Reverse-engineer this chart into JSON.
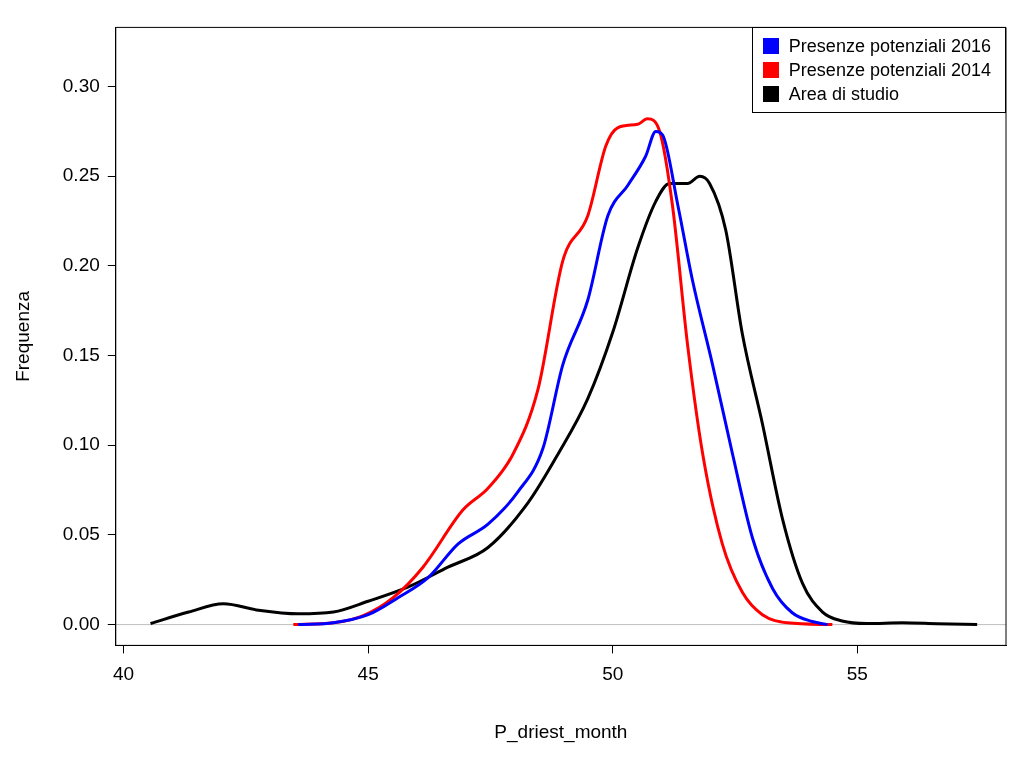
{
  "chart_data": {
    "type": "line",
    "xlabel": "P_driest_month",
    "ylabel": "Frequenza",
    "xlim": [
      39.84,
      58.04
    ],
    "ylim": [
      -0.0116,
      0.333
    ],
    "xticks": [
      40,
      45,
      50,
      55
    ],
    "yticks": [
      {
        "value": 0,
        "label": "0.00"
      },
      {
        "value": 0.05,
        "label": "0.05"
      },
      {
        "value": 0.1,
        "label": "0.10"
      },
      {
        "value": 0.15,
        "label": "0.15"
      },
      {
        "value": 0.2,
        "label": "0.20"
      },
      {
        "value": 0.25,
        "label": "0.25"
      },
      {
        "value": 0.3,
        "label": "0.30"
      }
    ],
    "grid": false,
    "legend": "top right",
    "marker": "none",
    "line_style": "solid",
    "ref_lines": [
      {
        "axis": "y",
        "value": 0,
        "color": "#bebebe"
      }
    ],
    "series": [
      {
        "name": "Presenze potenziali 2016",
        "color": "#0000ff",
        "x": [
          43.57,
          44.29,
          45.0,
          45.61,
          46.22,
          46.84,
          47.45,
          48.06,
          48.57,
          48.98,
          49.49,
          49.9,
          50.31,
          50.67,
          50.88,
          51.02,
          51.33,
          51.63,
          52.04,
          52.45,
          52.86,
          53.27,
          53.67,
          54.08,
          54.39
        ],
        "values": [
          0,
          0.001,
          0.0055,
          0.015,
          0.026,
          0.045,
          0.056,
          0.074,
          0.098,
          0.145,
          0.181,
          0.228,
          0.245,
          0.261,
          0.275,
          0.273,
          0.234,
          0.192,
          0.145,
          0.095,
          0.048,
          0.02,
          0.0066,
          0.0017,
          0
        ]
      },
      {
        "name": "Presenze potenziali 2014",
        "color": "#ff0000",
        "x": [
          43.47,
          44.29,
          44.9,
          45.51,
          46.12,
          46.94,
          47.45,
          47.96,
          48.47,
          48.98,
          49.49,
          49.86,
          50.1,
          50.51,
          50.71,
          50.96,
          51.22,
          51.53,
          51.84,
          52.24,
          52.65,
          53.06,
          53.57,
          54.49
        ],
        "values": [
          0,
          0.001,
          0.005,
          0.015,
          0.032,
          0.064,
          0.076,
          0.095,
          0.131,
          0.203,
          0.228,
          0.267,
          0.277,
          0.279,
          0.282,
          0.275,
          0.234,
          0.156,
          0.095,
          0.045,
          0.018,
          0.0055,
          0.001,
          0
        ]
      },
      {
        "name": "Area di studio",
        "color": "#000000",
        "x": [
          40.55,
          41.33,
          42.04,
          42.76,
          43.57,
          44.29,
          45.0,
          45.82,
          46.63,
          47.45,
          48.27,
          48.88,
          49.49,
          50.0,
          50.51,
          50.88,
          51.16,
          51.53,
          51.78,
          51.98,
          52.31,
          52.65,
          53.06,
          53.47,
          53.88,
          54.29,
          54.69,
          55.2,
          55.92,
          56.63,
          57.45
        ],
        "values": [
          0.0006,
          0.007,
          0.0116,
          0.008,
          0.006,
          0.007,
          0.013,
          0.021,
          0.032,
          0.043,
          0.068,
          0.095,
          0.126,
          0.163,
          0.21,
          0.236,
          0.246,
          0.246,
          0.25,
          0.246,
          0.22,
          0.162,
          0.112,
          0.059,
          0.023,
          0.007,
          0.002,
          0.0006,
          0.001,
          0.0005,
          0
        ]
      }
    ]
  }
}
